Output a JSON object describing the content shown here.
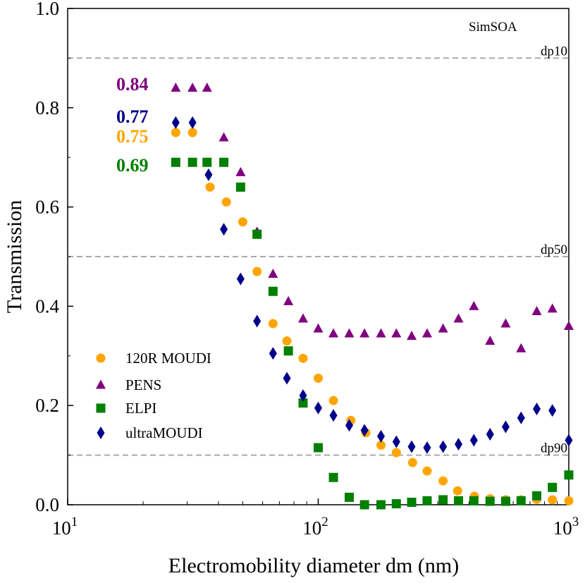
{
  "chart_data": {
    "type": "scatter",
    "title": "",
    "annotation": "SimSOA",
    "xlabel": "Electromobility diameter dm (nm)",
    "ylabel": "Transmission",
    "xscale": "log",
    "xlim": [
      10,
      1000
    ],
    "ylim": [
      0,
      1.0
    ],
    "grid": false,
    "legend_position": "lower-left",
    "x_ticks": [
      {
        "value": 10,
        "base": "10",
        "exp": "1"
      },
      {
        "value": 100,
        "base": "10",
        "exp": "2"
      },
      {
        "value": 1000,
        "base": "10",
        "exp": "3"
      }
    ],
    "y_ticks": [
      {
        "value": 0.0,
        "label": "0.0"
      },
      {
        "value": 0.2,
        "label": "0.2"
      },
      {
        "value": 0.4,
        "label": "0.4"
      },
      {
        "value": 0.6,
        "label": "0.6"
      },
      {
        "value": 0.8,
        "label": "0.8"
      },
      {
        "value": 1.0,
        "label": "1.0"
      }
    ],
    "reference_lines": [
      {
        "y": 0.9,
        "label": "dp10"
      },
      {
        "y": 0.5,
        "label": "dp50"
      },
      {
        "y": 0.1,
        "label": "dp90"
      }
    ],
    "value_labels": [
      {
        "text": "0.84",
        "y": 0.84,
        "color": "#800080"
      },
      {
        "text": "0.77",
        "y": 0.77,
        "color": "#00008b"
      },
      {
        "text": "0.75",
        "y": 0.75,
        "color": "#ffa500"
      },
      {
        "text": "0.69",
        "y": 0.69,
        "color": "#008000"
      }
    ],
    "series": [
      {
        "name": "120R MOUDI",
        "marker": "circle",
        "color": "#ffa500",
        "x": [
          27.0,
          31.5,
          37,
          43,
          50,
          57,
          66,
          75,
          87,
          100,
          115,
          135,
          155,
          178,
          205,
          238,
          272,
          315,
          360,
          420,
          485,
          560,
          645,
          745,
          860,
          1000
        ],
        "y": [
          0.75,
          0.75,
          0.64,
          0.61,
          0.57,
          0.47,
          0.365,
          0.33,
          0.295,
          0.255,
          0.21,
          0.17,
          0.145,
          0.12,
          0.105,
          0.085,
          0.068,
          0.048,
          0.028,
          0.017,
          0.012,
          0.01,
          0.01,
          0.011,
          0.01,
          0.008
        ]
      },
      {
        "name": "PENS",
        "marker": "triangle",
        "color": "#800080",
        "x": [
          27.0,
          31.5,
          36,
          42,
          49,
          57,
          66,
          76,
          87,
          100,
          115,
          133,
          153,
          178,
          205,
          236,
          272,
          315,
          363,
          418,
          485,
          560,
          645,
          745,
          860,
          1000
        ],
        "y": [
          0.84,
          0.84,
          0.84,
          0.74,
          0.67,
          0.55,
          0.465,
          0.41,
          0.375,
          0.355,
          0.345,
          0.345,
          0.345,
          0.345,
          0.345,
          0.34,
          0.345,
          0.355,
          0.375,
          0.4,
          0.33,
          0.365,
          0.315,
          0.39,
          0.395,
          0.36
        ]
      },
      {
        "name": "ELPI",
        "marker": "square",
        "color": "#008000",
        "x": [
          27.0,
          31.5,
          36,
          42,
          49,
          57,
          66,
          76,
          87,
          100,
          115,
          133,
          153,
          178,
          205,
          236,
          272,
          315,
          363,
          418,
          485,
          560,
          645,
          745,
          860,
          1000
        ],
        "y": [
          0.69,
          0.69,
          0.69,
          0.69,
          0.64,
          0.545,
          0.43,
          0.31,
          0.205,
          0.115,
          0.055,
          0.015,
          0.0,
          0.0,
          0.002,
          0.005,
          0.008,
          0.01,
          0.008,
          0.008,
          0.007,
          0.007,
          0.008,
          0.018,
          0.035,
          0.06
        ]
      },
      {
        "name": "ultraMOUDI",
        "marker": "diamond",
        "color": "#00008b",
        "x": [
          27.0,
          31.5,
          36.5,
          42,
          49,
          57,
          66,
          75,
          87,
          100,
          115,
          133,
          153,
          178,
          205,
          236,
          272,
          315,
          363,
          418,
          485,
          560,
          645,
          745,
          860,
          1000
        ],
        "y": [
          0.77,
          0.77,
          0.665,
          0.555,
          0.455,
          0.37,
          0.305,
          0.255,
          0.22,
          0.195,
          0.18,
          0.16,
          0.15,
          0.138,
          0.127,
          0.117,
          0.115,
          0.117,
          0.122,
          0.13,
          0.142,
          0.157,
          0.175,
          0.193,
          0.19,
          0.13
        ]
      }
    ]
  }
}
